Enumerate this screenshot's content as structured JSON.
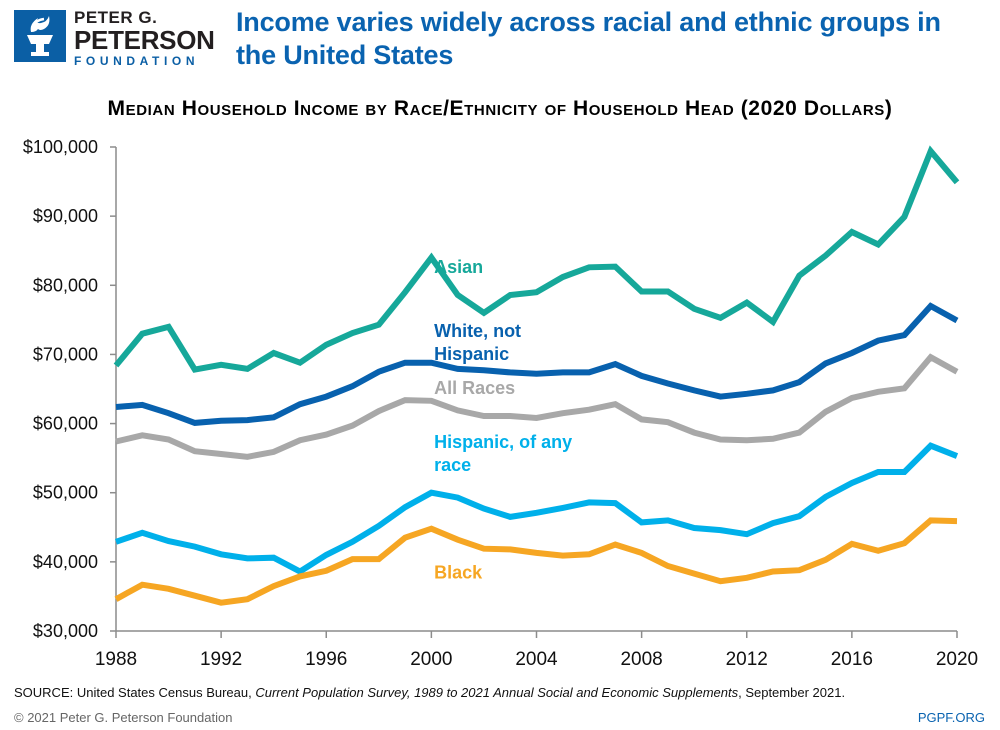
{
  "brand": {
    "line1": "PETER G.",
    "line2": "PETERSON",
    "line3": "FOUNDATION",
    "logo_icon": "torch-icon",
    "color": "#0b5fa5"
  },
  "headline": "Income varies widely across racial and ethnic groups in the United States",
  "footer": {
    "source_prefix": "SOURCE: United States Census Bureau, ",
    "source_italic": "Current Population Survey, 1989 to 2021 Annual Social and Economic Supplements",
    "source_suffix": ", September 2021.",
    "copyright": "© 2021 Peter G. Peterson Foundation",
    "site": "PGPF.ORG"
  },
  "chart_data": {
    "type": "line",
    "title": "Median Household Income by Race/Ethnicity of Household Head (2020 Dollars)",
    "xlabel": "",
    "ylabel": "",
    "xlim": [
      1988,
      2020
    ],
    "ylim": [
      30000,
      100000
    ],
    "grid": false,
    "legend": "inline labels",
    "x_ticks": [
      1988,
      1992,
      1996,
      2000,
      2004,
      2008,
      2012,
      2016,
      2020
    ],
    "y_ticks": [
      30000,
      40000,
      50000,
      60000,
      70000,
      80000,
      90000,
      100000
    ],
    "y_tick_labels": [
      "$30,000",
      "$40,000",
      "$50,000",
      "$60,000",
      "$70,000",
      "$80,000",
      "$90,000",
      "$100,000"
    ],
    "x": [
      1988,
      1989,
      1990,
      1991,
      1992,
      1993,
      1994,
      1995,
      1996,
      1997,
      1998,
      1999,
      2000,
      2001,
      2002,
      2003,
      2004,
      2005,
      2006,
      2007,
      2008,
      2009,
      2010,
      2011,
      2012,
      2013,
      2014,
      2015,
      2016,
      2017,
      2018,
      2019,
      2020
    ],
    "series": [
      {
        "name": "Asian",
        "label_lines": [
          "Asian"
        ],
        "label_anchor": [
          2002.5,
          81800
        ],
        "color": "#16a89a",
        "values": [
          68400,
          73000,
          74000,
          67800,
          68500,
          67900,
          70200,
          68800,
          71400,
          73100,
          74300,
          79000,
          84000,
          78600,
          76000,
          78600,
          79000,
          81200,
          82600,
          82700,
          79100,
          79100,
          76600,
          75300,
          77500,
          74700,
          81400,
          84300,
          87700,
          85900,
          89900,
          99400,
          94900
        ]
      },
      {
        "name": "White, not Hispanic",
        "label_lines": [
          "White, not",
          "Hispanic"
        ],
        "label_anchor": [
          2002.5,
          72500
        ],
        "color": "#0861ae",
        "values": [
          62400,
          62700,
          61500,
          60100,
          60400,
          60500,
          60900,
          62800,
          63900,
          65400,
          67500,
          68800,
          68800,
          67900,
          67700,
          67400,
          67200,
          67400,
          67400,
          68600,
          66900,
          65800,
          64800,
          63900,
          64300,
          64800,
          66000,
          68700,
          70200,
          72000,
          72800,
          77000,
          74900
        ]
      },
      {
        "name": "All Races",
        "label_lines": [
          "All Races"
        ],
        "label_anchor": [
          2002.5,
          64300
        ],
        "color": "#a8a8a8",
        "values": [
          57400,
          58300,
          57700,
          56000,
          55600,
          55200,
          55900,
          57600,
          58400,
          59700,
          61800,
          63400,
          63300,
          61900,
          61100,
          61100,
          60800,
          61500,
          62000,
          62800,
          60600,
          60200,
          58700,
          57700,
          57600,
          57800,
          58700,
          61700,
          63700,
          64600,
          65100,
          69600,
          67500
        ]
      },
      {
        "name": "Hispanic, of any race",
        "label_lines": [
          "Hispanic, of any",
          "race"
        ],
        "label_anchor": [
          2002.5,
          56500
        ],
        "color": "#00b0ea",
        "values": [
          42900,
          44200,
          43000,
          42200,
          41100,
          40500,
          40600,
          38600,
          41000,
          42900,
          45200,
          47900,
          50000,
          49300,
          47700,
          46500,
          47100,
          47800,
          48600,
          48500,
          45700,
          46000,
          44900,
          44600,
          44000,
          45600,
          46600,
          49400,
          51400,
          53000,
          53000,
          56800,
          55300
        ]
      },
      {
        "name": "Black",
        "label_lines": [
          "Black"
        ],
        "label_anchor": [
          2002.5,
          37600
        ],
        "color": "#f6a623",
        "values": [
          34600,
          36700,
          36100,
          35100,
          34100,
          34600,
          36500,
          37900,
          38700,
          40400,
          40400,
          43500,
          44800,
          43200,
          41900,
          41800,
          41300,
          40900,
          41100,
          42500,
          41300,
          39400,
          38300,
          37200,
          37700,
          38600,
          38800,
          40300,
          42600,
          41600,
          42700,
          46000,
          45900
        ]
      }
    ]
  }
}
